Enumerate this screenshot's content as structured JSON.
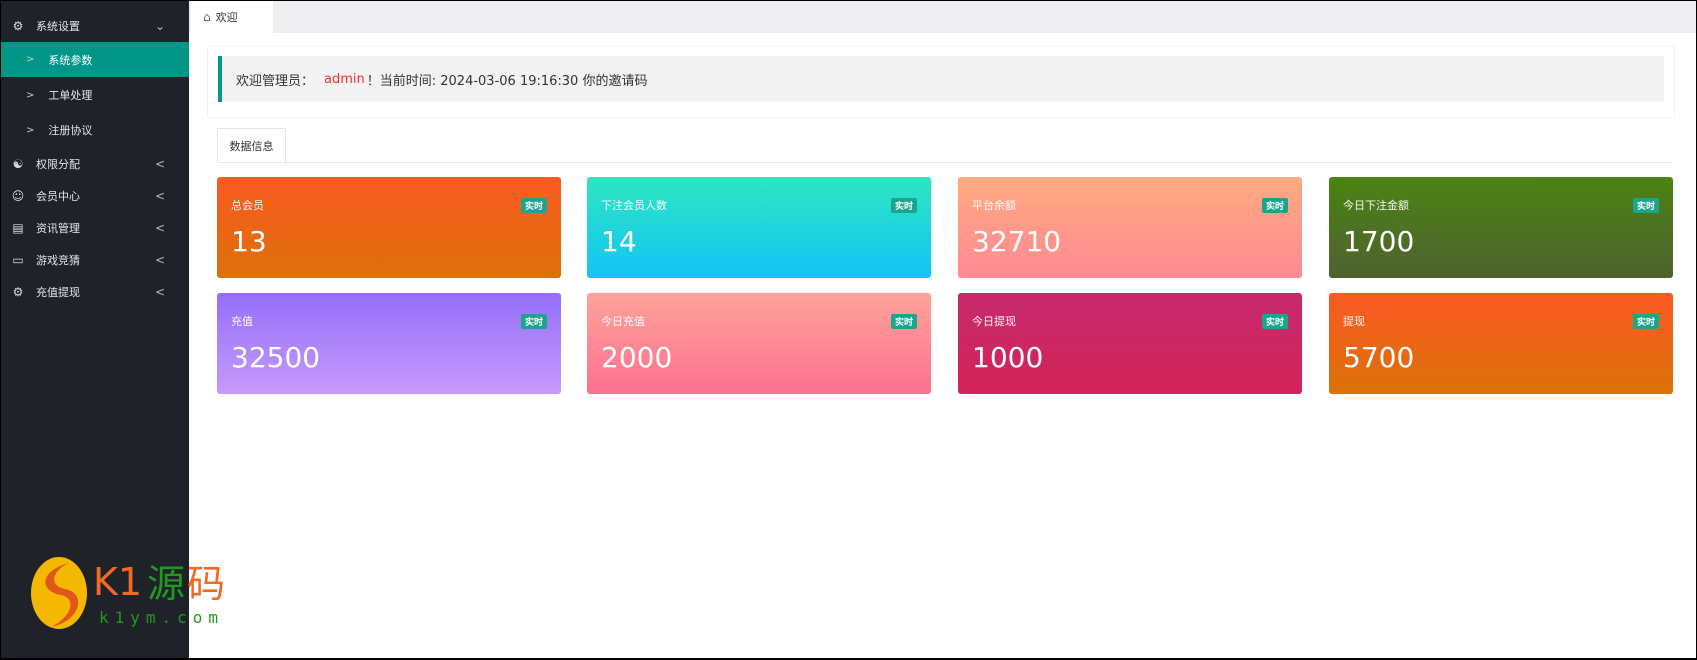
{
  "sidebar": {
    "items": [
      {
        "label": "系统设置",
        "icon": "gear-icon",
        "expanded": true
      },
      {
        "label": "系统参数",
        "active": true
      },
      {
        "label": "工单处理"
      },
      {
        "label": "注册协议"
      },
      {
        "label": "权限分配",
        "icon": "user-group-icon"
      },
      {
        "label": "会员中心",
        "icon": "user-icon"
      },
      {
        "label": "资讯管理",
        "icon": "news-icon"
      },
      {
        "label": "游戏竞猜",
        "icon": "monitor-icon"
      },
      {
        "label": "充值提现",
        "icon": "gear-icon"
      }
    ],
    "logo": {
      "text": "K1源码",
      "sub": "k1ym.com"
    }
  },
  "tabs": [
    {
      "label": "欢迎",
      "icon": "home-icon"
    }
  ],
  "welcome": {
    "prefix": "欢迎管理员：",
    "user": "admin",
    "suffix": "！当前时间: 2024-03-06 19:16:30 你的邀请码"
  },
  "data_tab": "数据信息",
  "cards": [
    {
      "label": "总会员",
      "value": "13",
      "badge": "实时",
      "colors": [
        "#fb5a24",
        "#db7108"
      ]
    },
    {
      "label": "下注会员人数",
      "value": "14",
      "badge": "实时",
      "colors": [
        "#2ee6c0",
        "#13c4f5"
      ]
    },
    {
      "label": "平台余额",
      "value": "32710",
      "badge": "实时",
      "colors": [
        "#ffaa80",
        "#ff8a94"
      ]
    },
    {
      "label": "今日下注金额",
      "value": "1700",
      "badge": "实时",
      "colors": [
        "#4b8412",
        "#4f612f"
      ]
    },
    {
      "label": "充值",
      "value": "32500",
      "badge": "实时",
      "colors": [
        "#946ef9",
        "#c69bfb"
      ]
    },
    {
      "label": "今日充值",
      "value": "2000",
      "badge": "实时",
      "colors": [
        "#fda39a",
        "#fd7190"
      ]
    },
    {
      "label": "今日提现",
      "value": "1000",
      "badge": "实时",
      "colors": [
        "#c62a6c",
        "#d4245a"
      ]
    },
    {
      "label": "提现",
      "value": "5700",
      "badge": "实时",
      "colors": [
        "#fb5a24",
        "#db7108"
      ]
    }
  ]
}
